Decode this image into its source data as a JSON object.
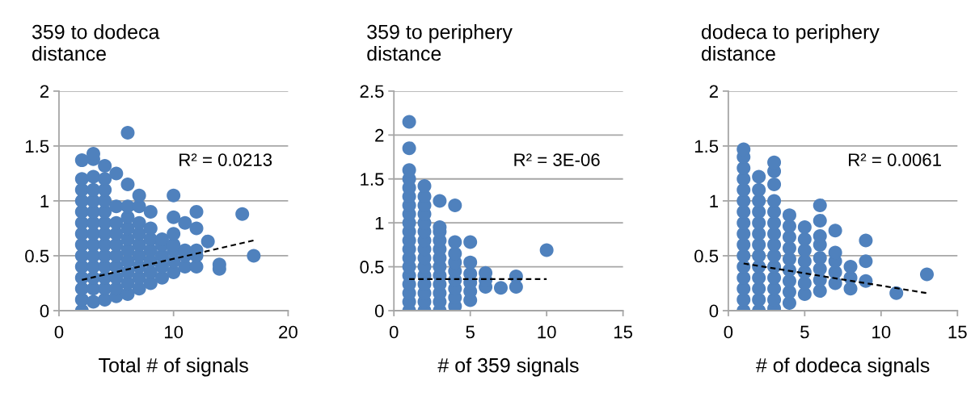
{
  "chart_data": [
    {
      "type": "scatter",
      "title": "359 to dodeca\ndistance",
      "xlabel": "Total # of signals",
      "xlim": [
        0,
        20
      ],
      "xticks": [
        0,
        10,
        20
      ],
      "ylim": [
        0,
        2
      ],
      "yticks": [
        0,
        0.5,
        1,
        1.5,
        2
      ],
      "grid": "y",
      "marker": "circle",
      "annotations": [
        "R² = 0.0213"
      ],
      "series": [
        {
          "color": "#4f81bd",
          "x": [
            2,
            2,
            2,
            2,
            2,
            2,
            2,
            2,
            2,
            2,
            2,
            2,
            2,
            2,
            3,
            3,
            3,
            3,
            3,
            3,
            3,
            3,
            3,
            3,
            3,
            3,
            3,
            3,
            4,
            4,
            4,
            4,
            4,
            4,
            4,
            4,
            4,
            4,
            4,
            4,
            4,
            5,
            5,
            5,
            5,
            5,
            5,
            5,
            5,
            5,
            5,
            6,
            6,
            6,
            6,
            6,
            6,
            6,
            6,
            6,
            6,
            6,
            7,
            7,
            7,
            7,
            7,
            7,
            7,
            7,
            7,
            8,
            8,
            8,
            8,
            8,
            8,
            8,
            9,
            9,
            9,
            9,
            9,
            10,
            10,
            10,
            10,
            10,
            10,
            10,
            11,
            11,
            11,
            11,
            12,
            12,
            12,
            12,
            12,
            13,
            14,
            14,
            16,
            17
          ],
          "values": [
            0,
            0.1,
            0.2,
            0.3,
            0.4,
            0.5,
            0.6,
            0.7,
            0.8,
            0.9,
            1.0,
            1.1,
            1.2,
            1.37,
            0.08,
            0.2,
            0.3,
            0.4,
            0.5,
            0.6,
            0.7,
            0.8,
            0.9,
            1.0,
            1.1,
            1.22,
            1.38,
            1.43,
            0.1,
            0.2,
            0.3,
            0.4,
            0.5,
            0.6,
            0.7,
            0.8,
            0.9,
            1.0,
            1.1,
            1.2,
            1.32,
            0.13,
            0.2,
            0.3,
            0.4,
            0.5,
            0.6,
            0.7,
            0.8,
            0.95,
            1.25,
            0.15,
            0.25,
            0.35,
            0.45,
            0.55,
            0.65,
            0.75,
            0.85,
            0.95,
            1.15,
            1.62,
            0.2,
            0.3,
            0.4,
            0.5,
            0.6,
            0.7,
            0.8,
            0.95,
            1.05,
            0.25,
            0.35,
            0.45,
            0.55,
            0.65,
            0.75,
            0.9,
            0.3,
            0.4,
            0.5,
            0.6,
            0.65,
            0.35,
            0.45,
            0.55,
            0.6,
            0.7,
            0.85,
            1.05,
            0.4,
            0.5,
            0.55,
            0.8,
            0.4,
            0.5,
            0.55,
            0.75,
            0.9,
            0.63,
            0.38,
            0.42,
            0.88,
            0.5
          ]
        },
        {
          "type": "line",
          "color": "#000000",
          "line_style": "dashed",
          "marker": "none",
          "x": [
            2,
            17
          ],
          "values": [
            0.28,
            0.64
          ]
        }
      ]
    },
    {
      "type": "scatter",
      "title": "359 to periphery\ndistance",
      "xlabel": "# of 359 signals",
      "xlim": [
        0,
        15
      ],
      "xticks": [
        0,
        5,
        10,
        15
      ],
      "ylim": [
        0,
        2.5
      ],
      "yticks": [
        0,
        0.5,
        1,
        1.5,
        2,
        2.5
      ],
      "grid": "y",
      "marker": "circle",
      "annotations": [
        "R² = 3E-06"
      ],
      "series": [
        {
          "color": "#4f81bd",
          "x": [
            1,
            1,
            1,
            1,
            1,
            1,
            1,
            1,
            1,
            1,
            1,
            1,
            1,
            1,
            1,
            1,
            1,
            1,
            1,
            2,
            2,
            2,
            2,
            2,
            2,
            2,
            2,
            2,
            2,
            2,
            2,
            2,
            2,
            2,
            3,
            3,
            3,
            3,
            3,
            3,
            3,
            3,
            3,
            3,
            3,
            3,
            4,
            4,
            4,
            4,
            4,
            4,
            4,
            4,
            4,
            5,
            5,
            5,
            5,
            5,
            5,
            6,
            6,
            6,
            7,
            8,
            8,
            10
          ],
          "values": [
            0,
            0.1,
            0.2,
            0.3,
            0.4,
            0.5,
            0.6,
            0.7,
            0.8,
            0.9,
            1.0,
            1.1,
            1.2,
            1.3,
            1.4,
            1.5,
            1.6,
            1.85,
            2.15,
            0,
            0.1,
            0.2,
            0.3,
            0.4,
            0.5,
            0.6,
            0.7,
            0.8,
            0.9,
            1.0,
            1.1,
            1.2,
            1.3,
            1.42,
            0,
            0.1,
            0.2,
            0.3,
            0.4,
            0.5,
            0.6,
            0.7,
            0.8,
            0.9,
            0.95,
            1.25,
            0.05,
            0.15,
            0.25,
            0.35,
            0.45,
            0.55,
            0.65,
            0.78,
            1.2,
            0.12,
            0.22,
            0.32,
            0.42,
            0.55,
            0.78,
            0.27,
            0.35,
            0.43,
            0.26,
            0.27,
            0.39,
            0.69
          ]
        },
        {
          "type": "line",
          "color": "#000000",
          "line_style": "dashed",
          "marker": "none",
          "x": [
            1,
            10
          ],
          "values": [
            0.36,
            0.36
          ]
        }
      ]
    },
    {
      "type": "scatter",
      "title": "dodeca to periphery\ndistance",
      "xlabel": "# of dodeca signals",
      "xlim": [
        0,
        15
      ],
      "xticks": [
        0,
        5,
        10,
        15
      ],
      "ylim": [
        0,
        2
      ],
      "yticks": [
        0,
        0.5,
        1,
        1.5,
        2
      ],
      "grid": "y",
      "marker": "circle",
      "annotations": [
        "R² = 0.0061"
      ],
      "series": [
        {
          "color": "#4f81bd",
          "x": [
            1,
            1,
            1,
            1,
            1,
            1,
            1,
            1,
            1,
            1,
            1,
            1,
            1,
            1,
            1,
            1,
            2,
            2,
            2,
            2,
            2,
            2,
            2,
            2,
            2,
            2,
            2,
            2,
            2,
            3,
            3,
            3,
            3,
            3,
            3,
            3,
            3,
            3,
            3,
            3,
            3,
            3,
            3,
            4,
            4,
            4,
            4,
            4,
            4,
            4,
            4,
            4,
            5,
            5,
            5,
            5,
            5,
            5,
            5,
            6,
            6,
            6,
            6,
            6,
            6,
            6,
            6,
            7,
            7,
            7,
            7,
            7,
            8,
            8,
            8,
            9,
            9,
            9,
            11,
            13
          ],
          "values": [
            0,
            0.1,
            0.2,
            0.3,
            0.4,
            0.5,
            0.6,
            0.7,
            0.8,
            0.9,
            1.0,
            1.1,
            1.2,
            1.3,
            1.4,
            1.47,
            0,
            0.1,
            0.2,
            0.3,
            0.4,
            0.5,
            0.6,
            0.7,
            0.8,
            0.9,
            1.0,
            1.1,
            1.22,
            0.02,
            0.1,
            0.2,
            0.3,
            0.4,
            0.5,
            0.6,
            0.7,
            0.8,
            0.9,
            1.0,
            1.15,
            1.27,
            1.35,
            0.07,
            0.17,
            0.27,
            0.37,
            0.47,
            0.57,
            0.67,
            0.77,
            0.87,
            0.15,
            0.25,
            0.35,
            0.45,
            0.55,
            0.65,
            0.76,
            0.18,
            0.28,
            0.38,
            0.48,
            0.6,
            0.68,
            0.82,
            0.96,
            0.25,
            0.35,
            0.45,
            0.53,
            0.73,
            0.2,
            0.3,
            0.4,
            0.27,
            0.45,
            0.64,
            0.16,
            0.33
          ]
        },
        {
          "type": "line",
          "color": "#000000",
          "line_style": "dashed",
          "marker": "none",
          "x": [
            1,
            13
          ],
          "values": [
            0.43,
            0.16
          ]
        }
      ]
    }
  ]
}
